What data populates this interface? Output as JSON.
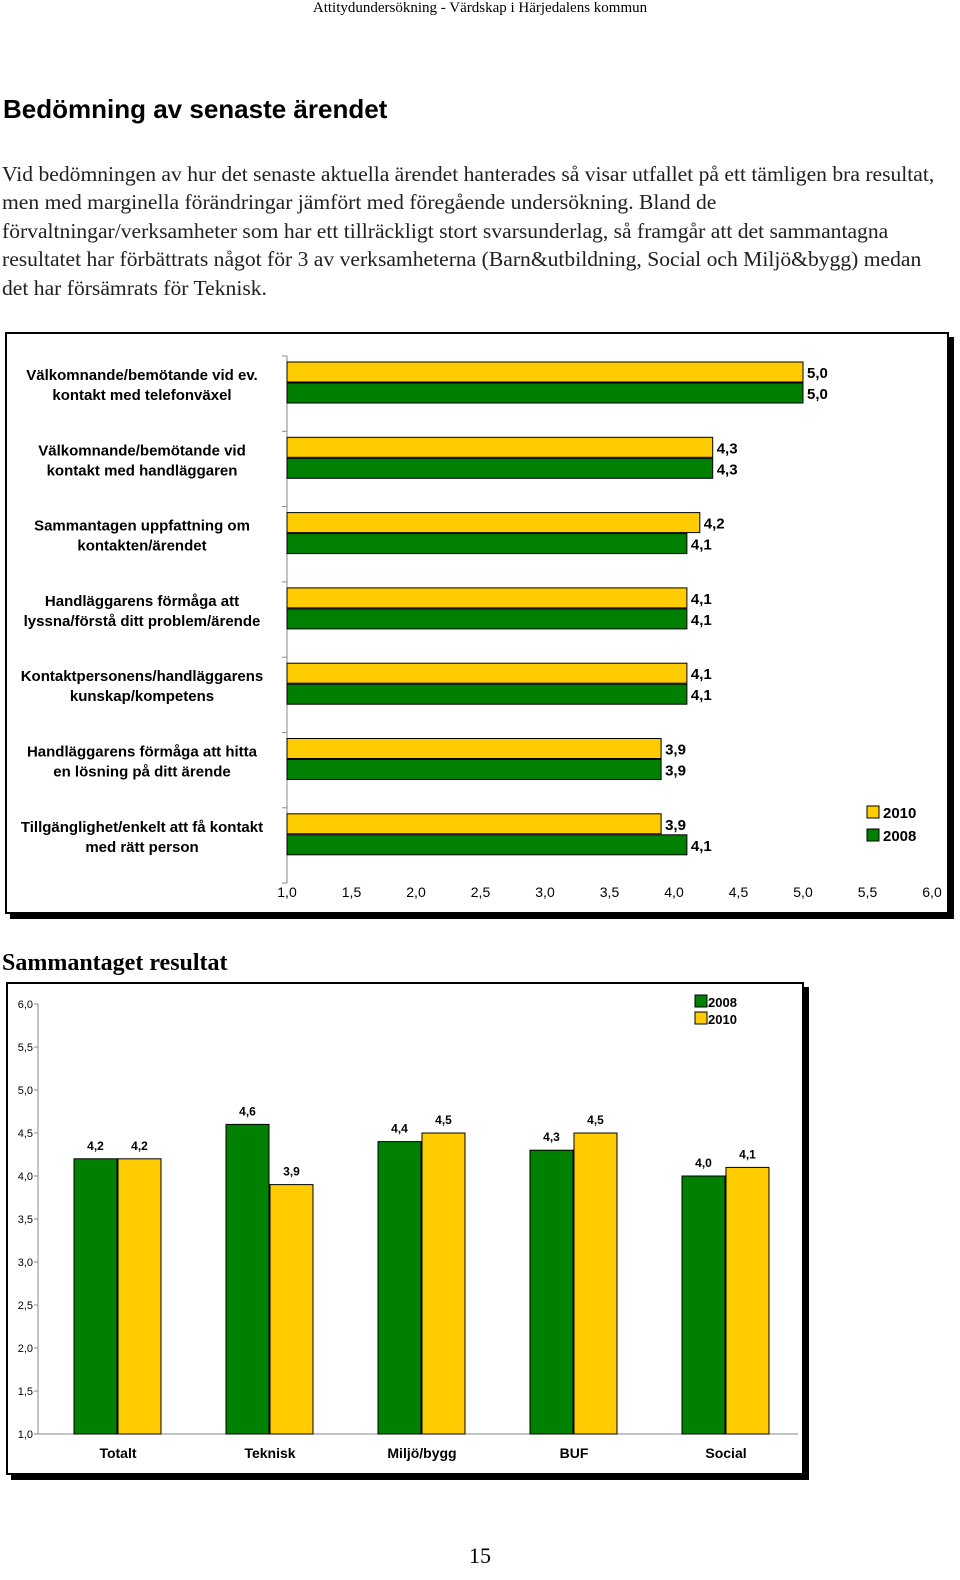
{
  "header": {
    "running_title": "Attitydundersökning - Värdskap i Härjedalens kommun"
  },
  "section": {
    "title": "Bedömning av senaste ärendet",
    "paragraph": "Vid bedömningen av hur det senaste aktuella ärendet hanterades så visar utfallet på ett tämligen bra resultat, men med marginella förändringar jämfört med föregående undersökning. Bland de förvaltningar/verksamheter som har ett tillräckligt stort svarsunderlag, så framgår att det sammantagna resultatet har förbättrats något för 3 av verksamheterna (Barn&utbildning, Social och Miljö&bygg) medan det har försämrats för Teknisk."
  },
  "section2": {
    "title": "Sammantaget resultat"
  },
  "page_number": "15",
  "colors": {
    "yellow": "#FFCC00",
    "green": "#008000"
  },
  "chart_data": [
    {
      "type": "bar",
      "orientation": "horizontal",
      "categories": [
        [
          "Välkomnande/bemötande vid ev.",
          "kontakt med  telefonväxel"
        ],
        [
          "Välkomnande/bemötande vid",
          "kontakt med handläggaren"
        ],
        [
          "Sammantagen uppfattning om",
          "kontakten/ärendet"
        ],
        [
          "Handläggarens förmåga att",
          "lyssna/förstå ditt problem/ärende"
        ],
        [
          "Kontaktpersonens/handläggarens",
          "kunskap/kompetens"
        ],
        [
          "Handläggarens förmåga att hitta",
          "en lösning på ditt ärende"
        ],
        [
          "Tillgänglighet/enkelt att få kontakt",
          "med rätt person"
        ]
      ],
      "series": [
        {
          "name": "2010",
          "color": "#FFCC00",
          "values": [
            5.0,
            4.3,
            4.2,
            4.1,
            4.1,
            3.9,
            3.9
          ],
          "labels": [
            "5,0",
            "4,3",
            "4,2",
            "4,1",
            "4,1",
            "3,9",
            "3,9"
          ]
        },
        {
          "name": "2008",
          "color": "#008000",
          "values": [
            5.0,
            4.3,
            4.1,
            4.1,
            4.1,
            3.9,
            4.1
          ],
          "labels": [
            "5,0",
            "4,3",
            "4,1",
            "4,1",
            "4,1",
            "3,9",
            "4,1"
          ]
        }
      ],
      "xlim": [
        1.0,
        6.0
      ],
      "ticks": [
        "1,0",
        "1,5",
        "2,0",
        "2,5",
        "3,0",
        "3,5",
        "4,0",
        "4,5",
        "5,0",
        "5,5",
        "6,0"
      ],
      "legend": [
        "2010",
        "2008"
      ],
      "legend_position": "right"
    },
    {
      "type": "bar",
      "orientation": "vertical",
      "title": "Sammantaget resultat",
      "categories": [
        "Totalt",
        "Teknisk",
        "Miljö/bygg",
        "BUF",
        "Social"
      ],
      "series": [
        {
          "name": "2008",
          "color": "#008000",
          "values": [
            4.2,
            4.6,
            4.4,
            4.3,
            4.0
          ],
          "labels": [
            "4,2",
            "4,6",
            "4,4",
            "4,3",
            "4,0"
          ]
        },
        {
          "name": "2010",
          "color": "#FFCC00",
          "values": [
            4.2,
            3.9,
            4.5,
            4.5,
            4.1
          ],
          "labels": [
            "4,2",
            "3,9",
            "4,5",
            "4,5",
            "4,1"
          ]
        }
      ],
      "ylim": [
        1.0,
        6.0
      ],
      "ticks": [
        "1,0",
        "1,5",
        "2,0",
        "2,5",
        "3,0",
        "3,5",
        "4,0",
        "4,5",
        "5,0",
        "5,5",
        "6,0"
      ],
      "legend": [
        "2008",
        "2010"
      ],
      "legend_position": "top-right"
    }
  ]
}
